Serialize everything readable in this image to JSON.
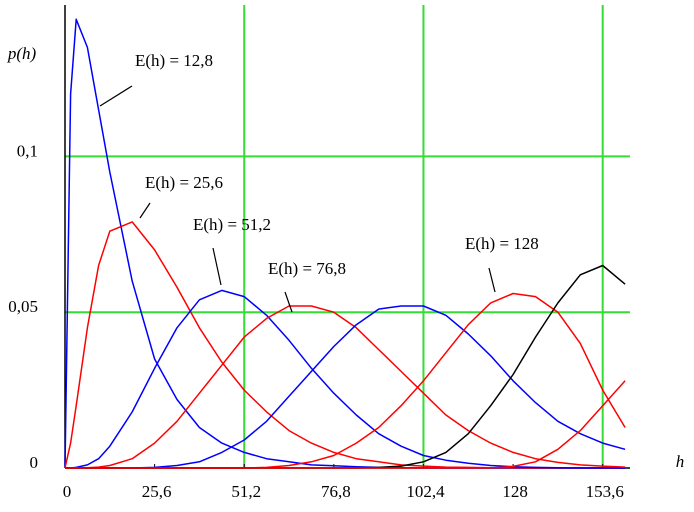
{
  "chart_data": {
    "type": "line",
    "y_label": "p(h)",
    "x_label": "h",
    "x": [
      0,
      1.6,
      3.2,
      6.4,
      9.6,
      12.8,
      19.2,
      25.6,
      32,
      38.4,
      44.8,
      51.2,
      57.6,
      64,
      70.4,
      76.8,
      83.2,
      89.6,
      96,
      102.4,
      108.8,
      115.2,
      121.6,
      128,
      134.4,
      140.8,
      147.2,
      153.6,
      160
    ],
    "series": [
      {
        "color": "#0000ff",
        "values": [
          0,
          0.12,
          0.144,
          0.135,
          0.115,
          0.095,
          0.06,
          0.035,
          0.022,
          0.013,
          0.008,
          0.005,
          0.003,
          0.002,
          0.001,
          0.0007,
          0.0004,
          0.0002,
          0.0001,
          0,
          0,
          0,
          0,
          0,
          0,
          0,
          0,
          0,
          0
        ]
      },
      {
        "color": "#ff0000",
        "values": [
          0,
          0.008,
          0.02,
          0.045,
          0.065,
          0.076,
          0.079,
          0.07,
          0.058,
          0.045,
          0.034,
          0.025,
          0.018,
          0.012,
          0.008,
          0.005,
          0.003,
          0.002,
          0.001,
          0.0006,
          0.0003,
          0.0002,
          0.0001,
          0.0001,
          0,
          0,
          0,
          0,
          0
        ]
      },
      {
        "color": "#0000ff",
        "values": [
          0,
          0,
          0.0002,
          0.001,
          0.003,
          0.007,
          0.018,
          0.032,
          0.045,
          0.054,
          0.057,
          0.055,
          0.049,
          0.041,
          0.032,
          0.024,
          0.017,
          0.011,
          0.007,
          0.004,
          0.0025,
          0.0015,
          0.0008,
          0.0004,
          0.0002,
          0.0001,
          0,
          0,
          0
        ]
      },
      {
        "color": "#ff0000",
        "values": [
          0,
          0,
          0,
          0.0001,
          0.0003,
          0.0008,
          0.003,
          0.008,
          0.015,
          0.024,
          0.033,
          0.042,
          0.048,
          0.052,
          0.052,
          0.05,
          0.045,
          0.038,
          0.031,
          0.024,
          0.017,
          0.012,
          0.008,
          0.005,
          0.003,
          0.0018,
          0.001,
          0.0006,
          0.0003
        ]
      },
      {
        "color": "#0000ff",
        "values": [
          0,
          0,
          0,
          0,
          0,
          0,
          0,
          0.0002,
          0.0008,
          0.002,
          0.005,
          0.009,
          0.015,
          0.023,
          0.031,
          0.039,
          0.046,
          0.051,
          0.052,
          0.052,
          0.049,
          0.043,
          0.036,
          0.028,
          0.021,
          0.015,
          0.011,
          0.008,
          0.006
        ]
      },
      {
        "color": "#ff0000",
        "values": [
          0,
          0,
          0,
          0,
          0,
          0,
          0,
          0,
          0,
          0,
          0,
          0,
          0.0002,
          0.0008,
          0.002,
          0.004,
          0.008,
          0.013,
          0.02,
          0.028,
          0.037,
          0.046,
          0.053,
          0.056,
          0.055,
          0.05,
          0.04,
          0.025,
          0.013
        ]
      },
      {
        "color": "#000000",
        "values": [
          0,
          0,
          0,
          0,
          0,
          0,
          0,
          0,
          0,
          0,
          0,
          0,
          0,
          0,
          0,
          0,
          0,
          0.0002,
          0.0006,
          0.002,
          0.005,
          0.011,
          0.02,
          0.03,
          0.042,
          0.053,
          0.062,
          0.065,
          0.059
        ]
      },
      {
        "color": "#ff0000",
        "values": [
          0,
          0,
          0,
          0,
          0,
          0,
          0,
          0,
          0,
          0,
          0,
          0,
          0,
          0,
          0,
          0,
          0,
          0,
          0,
          0,
          0,
          0,
          0,
          0.0005,
          0.002,
          0.006,
          0.012,
          0.02,
          0.028
        ]
      }
    ],
    "annotations": [
      "E(h) = 12,8",
      "E(h) = 25,6",
      "E(h) = 51,2",
      "E(h) = 76,8",
      "E(h) = 128"
    ],
    "xlim": [
      0,
      161.4
    ],
    "ylim": [
      0,
      0.147
    ],
    "xticks": [
      0,
      {
        "value": 25.6,
        "label": "25,6"
      },
      {
        "value": 51.2,
        "label": "51,2"
      },
      {
        "value": 76.8,
        "label": "76,8"
      },
      {
        "value": 102.4,
        "label": "102,4"
      },
      128,
      {
        "value": 153.6,
        "label": "153,6"
      }
    ],
    "yticks": [
      0,
      {
        "value": 0.05,
        "label": "0,05"
      },
      {
        "value": 0.1,
        "label": "0,1"
      }
    ],
    "xgrid": [
      51.2,
      102.4,
      153.6
    ],
    "grid_color": "#33dd33"
  }
}
